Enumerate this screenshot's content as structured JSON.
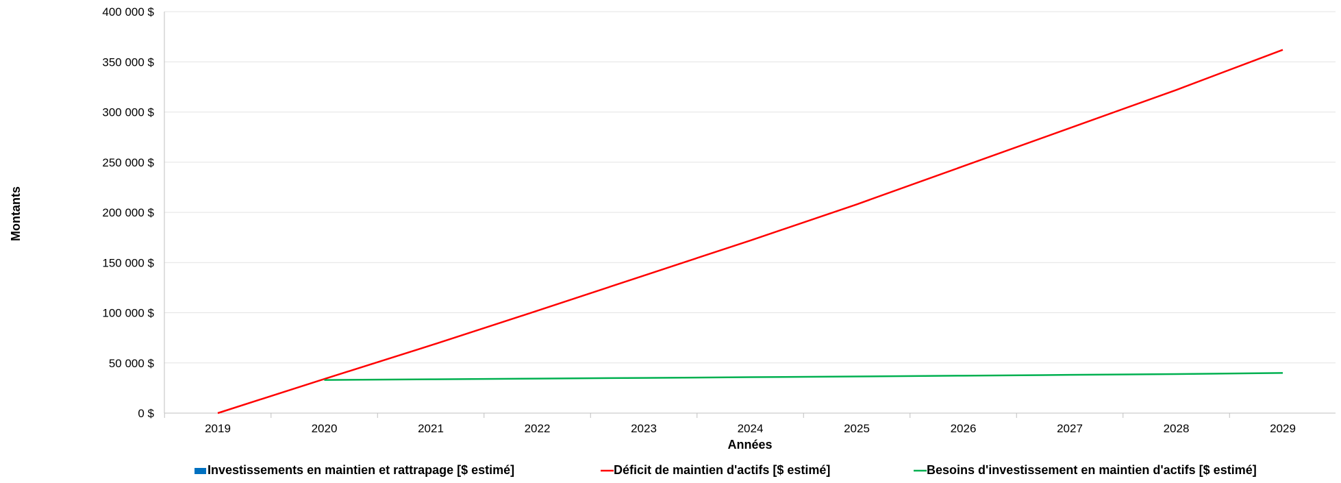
{
  "chart_data": {
    "type": "line",
    "title": "",
    "xlabel": "Années",
    "ylabel": "Montants",
    "x": [
      "2019",
      "2020",
      "2021",
      "2022",
      "2023",
      "2024",
      "2025",
      "2026",
      "2027",
      "2028",
      "2029"
    ],
    "ylim": [
      0,
      400000
    ],
    "yticks": [
      0,
      50000,
      100000,
      150000,
      200000,
      250000,
      300000,
      350000,
      400000
    ],
    "ytick_labels": [
      "0 $",
      "50 000 $",
      "100 000 $",
      "150 000 $",
      "200 000 $",
      "250 000 $",
      "300 000 $",
      "350 000 $",
      "400 000 $"
    ],
    "grid": true,
    "legend_position": "bottom",
    "series": [
      {
        "name": "Investissements en maintien et rattrapage [$ estimé]",
        "type": "bar",
        "color": "#0070C0",
        "values": [
          0,
          0,
          0,
          0,
          0,
          0,
          0,
          0,
          0,
          0,
          0
        ]
      },
      {
        "name": "Déficit de maintien d'actifs [$ estimé]",
        "type": "line",
        "color": "#FF0000",
        "values": [
          0,
          34000,
          67500,
          102000,
          137000,
          172000,
          208000,
          246000,
          284000,
          322000,
          362000
        ]
      },
      {
        "name": "Besoins d'investissement en maintien d'actifs [$ estimé]",
        "type": "line",
        "color": "#00B050",
        "values": [
          null,
          33000,
          33700,
          34400,
          35100,
          35800,
          36500,
          37300,
          38100,
          38900,
          40000
        ]
      }
    ]
  }
}
